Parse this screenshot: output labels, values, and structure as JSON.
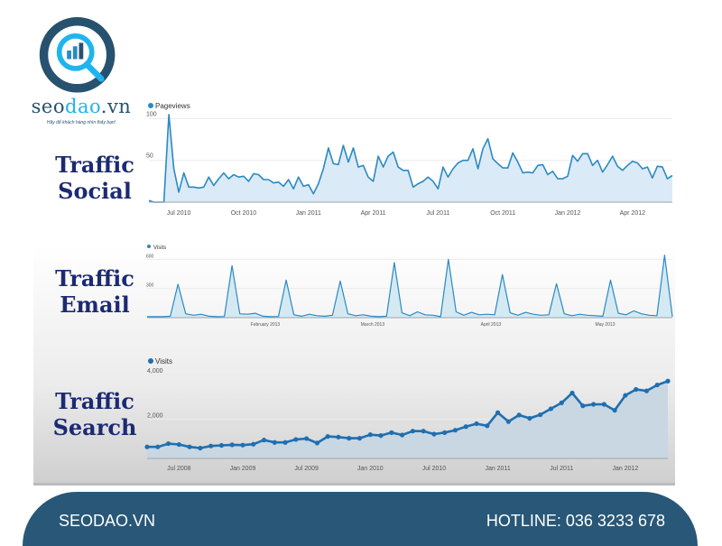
{
  "brand": {
    "name_prefix": "seo",
    "name_accent": "dao",
    "name_suffix": ".vn",
    "tagline": "Hãy để khách hàng nhìn thấy bạn!"
  },
  "titles": {
    "social": [
      "Traffic",
      "Social"
    ],
    "email": [
      "Traffic",
      "Email"
    ],
    "search": [
      "Traffic",
      "Search"
    ]
  },
  "footer": {
    "site": "SEODAO.VN",
    "hotline": "HOTLINE: 036 3233 678"
  },
  "colors": {
    "line": "#2a8ac4",
    "fill": "#dbeaf7",
    "search_line": "#1f6fb0",
    "search_fill": "#c9d7e3",
    "title": "#1c2a72",
    "footer": "#285778"
  },
  "chart_data": [
    {
      "type": "area",
      "title": "Traffic Social",
      "legend": "Pageviews",
      "legend_placement": "top-left",
      "ylim": [
        0,
        107
      ],
      "yticks": [
        {
          "value": 100,
          "label": "100"
        },
        {
          "value": 50,
          "label": "50"
        }
      ],
      "xticks": [
        {
          "index": 6,
          "label": "Jul 2010"
        },
        {
          "index": 19,
          "label": "Oct 2010"
        },
        {
          "index": 32,
          "label": "Jan 2011"
        },
        {
          "index": 45,
          "label": "Apr 2011"
        },
        {
          "index": 58,
          "label": "Jul 2011"
        },
        {
          "index": 71,
          "label": "Oct 2011"
        },
        {
          "index": 84,
          "label": "Jan 2012"
        },
        {
          "index": 97,
          "label": "Apr 2012"
        }
      ],
      "values": [
        2,
        0,
        0,
        0,
        105,
        40,
        12,
        35,
        18,
        18,
        17,
        18,
        30,
        20,
        28,
        35,
        28,
        33,
        30,
        31,
        25,
        34,
        33,
        27,
        27,
        23,
        24,
        19,
        27,
        16,
        30,
        19,
        21,
        10,
        22,
        40,
        65,
        46,
        45,
        68,
        48,
        65,
        42,
        44,
        30,
        25,
        55,
        42,
        55,
        60,
        42,
        38,
        38,
        18,
        22,
        25,
        30,
        25,
        16,
        42,
        30,
        40,
        47,
        50,
        50,
        64,
        40,
        64,
        76,
        52,
        46,
        41,
        41,
        59,
        48,
        35,
        36,
        35,
        44,
        45,
        33,
        37,
        28,
        28,
        31,
        56,
        49,
        58,
        58,
        44,
        50,
        36,
        45,
        55,
        43,
        38,
        44,
        49,
        47,
        40,
        42,
        29,
        43,
        42,
        28,
        32
      ]
    },
    {
      "type": "area",
      "title": "Traffic Email",
      "legend": "Visits",
      "legend_placement": "top-left",
      "ylim": [
        0,
        640
      ],
      "yticks": [
        {
          "value": 600,
          "label": "600"
        },
        {
          "value": 300,
          "label": "300"
        }
      ],
      "xticks": [
        {
          "index": 15.3,
          "label": "February 2013"
        },
        {
          "index": 29.2,
          "label": "March 2013"
        },
        {
          "index": 44.5,
          "label": "April 2013"
        },
        {
          "index": 59.3,
          "label": "May 2013"
        }
      ],
      "values": [
        10,
        10,
        10,
        15,
        343,
        40,
        25,
        35,
        15,
        10,
        12,
        534,
        40,
        35,
        45,
        15,
        10,
        12,
        386,
        30,
        15,
        35,
        20,
        15,
        25,
        377,
        40,
        20,
        30,
        15,
        10,
        15,
        566,
        50,
        20,
        60,
        30,
        25,
        10,
        600,
        60,
        25,
        55,
        30,
        35,
        30,
        443,
        50,
        25,
        55,
        35,
        25,
        30,
        349,
        40,
        20,
        35,
        25,
        20,
        15,
        386,
        45,
        30,
        70,
        40,
        25,
        20,
        643,
        10
      ]
    },
    {
      "type": "area",
      "title": "Traffic Search",
      "legend": "Visits",
      "legend_placement": "top-left",
      "ylim": [
        0,
        4000
      ],
      "markers": true,
      "yticks": [
        {
          "value": 4000,
          "label": "4,000"
        },
        {
          "value": 2000,
          "label": "2,000"
        }
      ],
      "xticks": [
        {
          "index": 3,
          "label": "Jul 2008"
        },
        {
          "index": 9,
          "label": "Jan 2009"
        },
        {
          "index": 15,
          "label": "Jul 2009"
        },
        {
          "index": 21,
          "label": "Jan 2010"
        },
        {
          "index": 27,
          "label": "Jul 2010"
        },
        {
          "index": 33,
          "label": "Jan 2011"
        },
        {
          "index": 39,
          "label": "Jul 2011"
        },
        {
          "index": 45,
          "label": "Jan 2012"
        }
      ],
      "values": [
        760,
        760,
        907,
        867,
        760,
        707,
        800,
        827,
        853,
        840,
        880,
        1067,
        960,
        960,
        1093,
        1133,
        933,
        1227,
        1200,
        1147,
        1147,
        1307,
        1267,
        1400,
        1293,
        1467,
        1467,
        1333,
        1400,
        1507,
        1667,
        1800,
        1707,
        2293,
        1893,
        2187,
        2040,
        2200,
        2467,
        2733,
        3173,
        2600,
        2667,
        2667,
        2400,
        3067,
        3333,
        3267,
        3533,
        3707
      ]
    }
  ]
}
